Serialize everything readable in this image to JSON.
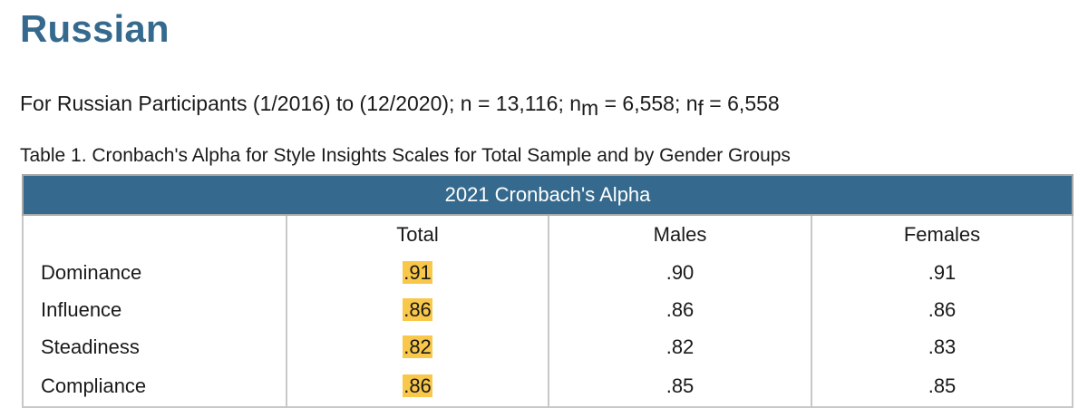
{
  "heading": "Russian",
  "subtitle": {
    "prefix": "For Russian Participants (1/2016) to (12/2020);  n = 13,116;  n",
    "m_sub": "m",
    "middle": " = 6,558;  n",
    "f_sub": "f",
    "suffix": " = 6,558"
  },
  "caption": "Table 1. Cronbach's Alpha for Style Insights Scales for Total Sample and by Gender Groups",
  "table": {
    "banner": "2021 Cronbach's Alpha",
    "columns": [
      "",
      "Total",
      "Males",
      "Females"
    ],
    "rows": [
      {
        "label": "Dominance",
        "total": ".91",
        "males": ".90",
        "females": ".91"
      },
      {
        "label": "Influence",
        "total": ".86",
        "males": ".86",
        "females": ".86"
      },
      {
        "label": "Steadiness",
        "total": ".82",
        "males": ".82",
        "females": ".83"
      },
      {
        "label": "Compliance",
        "total": ".86",
        "males": ".85",
        "females": ".85"
      }
    ]
  },
  "colors": {
    "heading": "#356a8e",
    "banner": "#356a8e",
    "highlight": "#f9c84b"
  }
}
